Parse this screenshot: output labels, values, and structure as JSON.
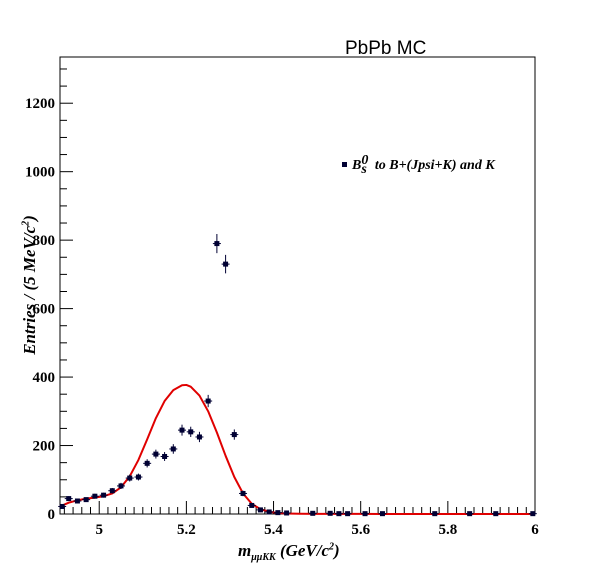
{
  "chart_data": {
    "type": "scatter",
    "title": "PbPb MC",
    "xlabel": {
      "prefix": "m",
      "subscript": "μμKK",
      "suffix": " (GeV/c",
      "power": "2",
      "close": ")"
    },
    "ylabel": {
      "text": "Entries / (5 MeV/c",
      "power": "2",
      "close": ")"
    },
    "xlim": [
      4.91,
      6.0
    ],
    "ylim": [
      0,
      1335
    ],
    "xticks": [
      5,
      5.2,
      5.4,
      5.6,
      5.8,
      6
    ],
    "xtick_labels": [
      "5",
      "5.2",
      "5.4",
      "5.6",
      "5.8",
      "6"
    ],
    "yticks": [
      0,
      200,
      400,
      600,
      800,
      1000,
      1200
    ],
    "ytick_labels": [
      "0",
      "200",
      "400",
      "600",
      "800",
      "1000",
      "1200"
    ],
    "legend": {
      "position": "top-right",
      "base": "B",
      "sup": "0",
      "sub": "s",
      "text": " to B+(Jpsi+K) and K"
    },
    "series": [
      {
        "kind": "points-with-errors",
        "color": "#000033",
        "x": [
          4.915,
          4.93,
          4.95,
          4.97,
          4.99,
          5.01,
          5.03,
          5.05,
          5.07,
          5.09,
          5.11,
          5.13,
          5.15,
          5.17,
          5.19,
          5.21,
          5.23,
          5.25,
          5.27,
          5.29,
          5.31,
          5.33,
          5.35,
          5.37,
          5.39,
          5.41,
          5.43,
          5.49,
          5.53,
          5.55,
          5.57,
          5.61,
          5.65,
          5.77,
          5.85,
          5.91,
          5.995
        ],
        "y": [
          22,
          45,
          38,
          42,
          52,
          55,
          68,
          82,
          105,
          108,
          148,
          175,
          168,
          190,
          245,
          240,
          225,
          330,
          790,
          730,
          232,
          60,
          25,
          12,
          6,
          4,
          3,
          2,
          2,
          1,
          1,
          1,
          1,
          1,
          1,
          1,
          1
        ],
        "yerr": [
          5,
          7,
          6,
          6,
          7,
          7,
          8,
          9,
          10,
          10,
          12,
          13,
          13,
          14,
          16,
          15,
          15,
          18,
          28,
          27,
          15,
          8,
          5,
          3.5,
          2.5,
          2,
          1.7,
          1.4,
          1.4,
          1,
          1,
          1,
          1,
          1,
          1,
          1,
          1
        ]
      },
      {
        "kind": "fit-curve",
        "color": "#e00000",
        "x": [
          4.91,
          4.93,
          4.95,
          4.97,
          4.99,
          5.01,
          5.03,
          5.05,
          5.07,
          5.09,
          5.11,
          5.13,
          5.15,
          5.17,
          5.19,
          5.2,
          5.21,
          5.23,
          5.25,
          5.27,
          5.29,
          5.31,
          5.33,
          5.35,
          5.37,
          5.39,
          5.41,
          5.43,
          5.46,
          5.5,
          5.6,
          5.8,
          6.0
        ],
        "y": [
          22,
          33,
          40,
          45,
          48,
          52,
          60,
          78,
          110,
          158,
          218,
          280,
          330,
          362,
          376,
          377,
          372,
          346,
          300,
          238,
          170,
          108,
          60,
          30,
          14,
          6.5,
          3,
          1.5,
          0.6,
          0.3,
          0.2,
          0.1,
          0.1
        ]
      }
    ]
  }
}
